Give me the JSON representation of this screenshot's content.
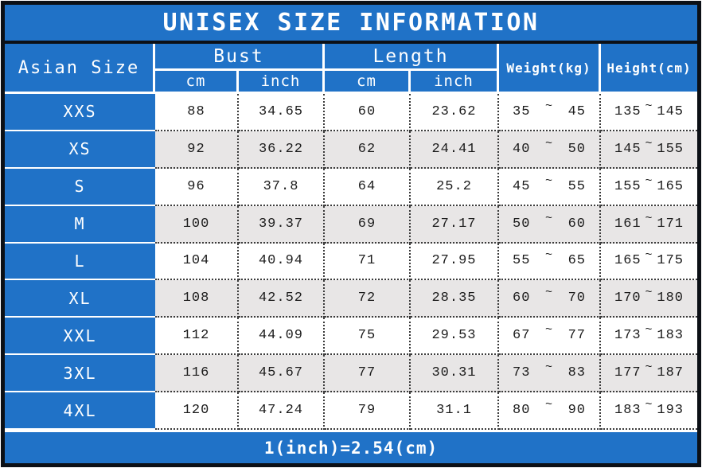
{
  "tilde": "~",
  "header": {
    "asian_size": "Asian Size",
    "bust": "Bust",
    "length": "Length",
    "cm": "cm",
    "inch": "inch",
    "weight": "Weight(kg)",
    "height": "Height(cm)"
  },
  "colors": {
    "blue": "#2072C7",
    "row_alt": "#e8e6e6",
    "border_dark": "#0c1016"
  },
  "chart_data": {
    "type": "table",
    "title": "UNISEX SIZE INFORMATION",
    "note": "1(inch)=2.54(cm)",
    "columns": [
      "Asian Size",
      "Bust cm",
      "Bust inch",
      "Length cm",
      "Length inch",
      "Weight(kg)",
      "Height(cm)"
    ],
    "rows": [
      {
        "size": "XXS",
        "bust_cm": "88",
        "bust_inch": "34.65",
        "length_cm": "60",
        "length_inch": "23.62",
        "weight_min": "35",
        "weight_max": "45",
        "height_min": "135",
        "height_max": "145"
      },
      {
        "size": "XS",
        "bust_cm": "92",
        "bust_inch": "36.22",
        "length_cm": "62",
        "length_inch": "24.41",
        "weight_min": "40",
        "weight_max": "50",
        "height_min": "145",
        "height_max": "155"
      },
      {
        "size": "S",
        "bust_cm": "96",
        "bust_inch": "37.8",
        "length_cm": "64",
        "length_inch": "25.2",
        "weight_min": "45",
        "weight_max": "55",
        "height_min": "155",
        "height_max": "165"
      },
      {
        "size": "M",
        "bust_cm": "100",
        "bust_inch": "39.37",
        "length_cm": "69",
        "length_inch": "27.17",
        "weight_min": "50",
        "weight_max": "60",
        "height_min": "161",
        "height_max": "171"
      },
      {
        "size": "L",
        "bust_cm": "104",
        "bust_inch": "40.94",
        "length_cm": "71",
        "length_inch": "27.95",
        "weight_min": "55",
        "weight_max": "65",
        "height_min": "165",
        "height_max": "175"
      },
      {
        "size": "XL",
        "bust_cm": "108",
        "bust_inch": "42.52",
        "length_cm": "72",
        "length_inch": "28.35",
        "weight_min": "60",
        "weight_max": "70",
        "height_min": "170",
        "height_max": "180"
      },
      {
        "size": "XXL",
        "bust_cm": "112",
        "bust_inch": "44.09",
        "length_cm": "75",
        "length_inch": "29.53",
        "weight_min": "67",
        "weight_max": "77",
        "height_min": "173",
        "height_max": "183"
      },
      {
        "size": "3XL",
        "bust_cm": "116",
        "bust_inch": "45.67",
        "length_cm": "77",
        "length_inch": "30.31",
        "weight_min": "73",
        "weight_max": "83",
        "height_min": "177",
        "height_max": "187"
      },
      {
        "size": "4XL",
        "bust_cm": "120",
        "bust_inch": "47.24",
        "length_cm": "79",
        "length_inch": "31.1",
        "weight_min": "80",
        "weight_max": "90",
        "height_min": "183",
        "height_max": "193"
      }
    ]
  }
}
